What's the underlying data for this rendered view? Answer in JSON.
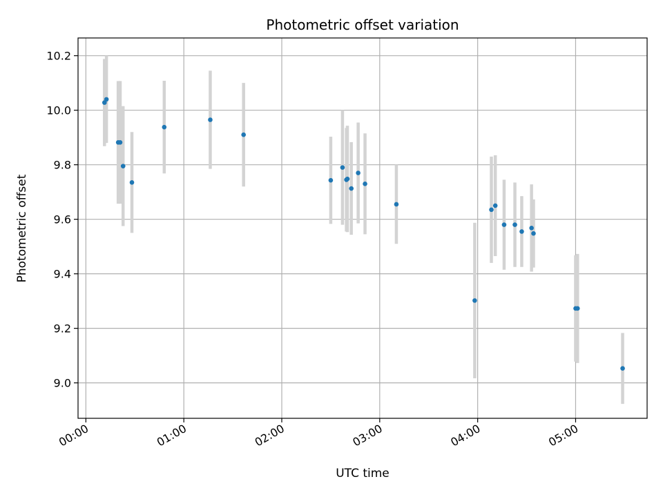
{
  "chart_data": {
    "type": "scatter",
    "title": "Photometric offset variation",
    "xlabel": "UTC time",
    "ylabel": "Photometric offset",
    "x_unit": "hours",
    "xlim": [
      -0.08,
      5.73
    ],
    "ylim": [
      8.87,
      10.265
    ],
    "x_ticks": [
      0,
      1,
      2,
      3,
      4,
      5
    ],
    "x_tick_labels": [
      "00:00",
      "01:00",
      "02:00",
      "03:00",
      "04:00",
      "05:00"
    ],
    "y_ticks": [
      9.0,
      9.2,
      9.4,
      9.6,
      9.8,
      10.0,
      10.2
    ],
    "y_tick_labels": [
      "9.0",
      "9.2",
      "9.4",
      "9.6",
      "9.8",
      "10.0",
      "10.2"
    ],
    "grid": true,
    "colors": {
      "point": "#1f77b4",
      "errorbar": "#d3d3d3",
      "grid": "#b0b0b0"
    },
    "series": [
      {
        "points": [
          {
            "x": 0.19,
            "y": 10.028,
            "yerr": 0.16
          },
          {
            "x": 0.21,
            "y": 10.04,
            "yerr": 0.16
          },
          {
            "x": 0.33,
            "y": 9.882,
            "yerr": 0.225
          },
          {
            "x": 0.35,
            "y": 9.882,
            "yerr": 0.225
          },
          {
            "x": 0.38,
            "y": 9.795,
            "yerr": 0.22
          },
          {
            "x": 0.47,
            "y": 9.735,
            "yerr": 0.185
          },
          {
            "x": 0.8,
            "y": 9.938,
            "yerr": 0.17
          },
          {
            "x": 1.27,
            "y": 9.965,
            "yerr": 0.18
          },
          {
            "x": 1.61,
            "y": 9.91,
            "yerr": 0.19
          },
          {
            "x": 2.5,
            "y": 9.743,
            "yerr": 0.16
          },
          {
            "x": 2.62,
            "y": 9.79,
            "yerr": 0.21
          },
          {
            "x": 2.66,
            "y": 9.745,
            "yerr": 0.19
          },
          {
            "x": 2.67,
            "y": 9.748,
            "yerr": 0.195
          },
          {
            "x": 2.71,
            "y": 9.713,
            "yerr": 0.17
          },
          {
            "x": 2.78,
            "y": 9.77,
            "yerr": 0.185
          },
          {
            "x": 2.85,
            "y": 9.73,
            "yerr": 0.185
          },
          {
            "x": 3.17,
            "y": 9.655,
            "yerr": 0.145
          },
          {
            "x": 3.97,
            "y": 9.302,
            "yerr": 0.285
          },
          {
            "x": 4.14,
            "y": 9.635,
            "yerr": 0.195
          },
          {
            "x": 4.18,
            "y": 9.65,
            "yerr": 0.185
          },
          {
            "x": 4.27,
            "y": 9.58,
            "yerr": 0.165
          },
          {
            "x": 4.38,
            "y": 9.58,
            "yerr": 0.155
          },
          {
            "x": 4.45,
            "y": 9.555,
            "yerr": 0.13
          },
          {
            "x": 4.55,
            "y": 9.568,
            "yerr": 0.16
          },
          {
            "x": 4.57,
            "y": 9.548,
            "yerr": 0.125
          },
          {
            "x": 5.0,
            "y": 9.273,
            "yerr": 0.195
          },
          {
            "x": 5.02,
            "y": 9.273,
            "yerr": 0.2
          },
          {
            "x": 5.48,
            "y": 9.053,
            "yerr": 0.13
          }
        ]
      }
    ]
  }
}
